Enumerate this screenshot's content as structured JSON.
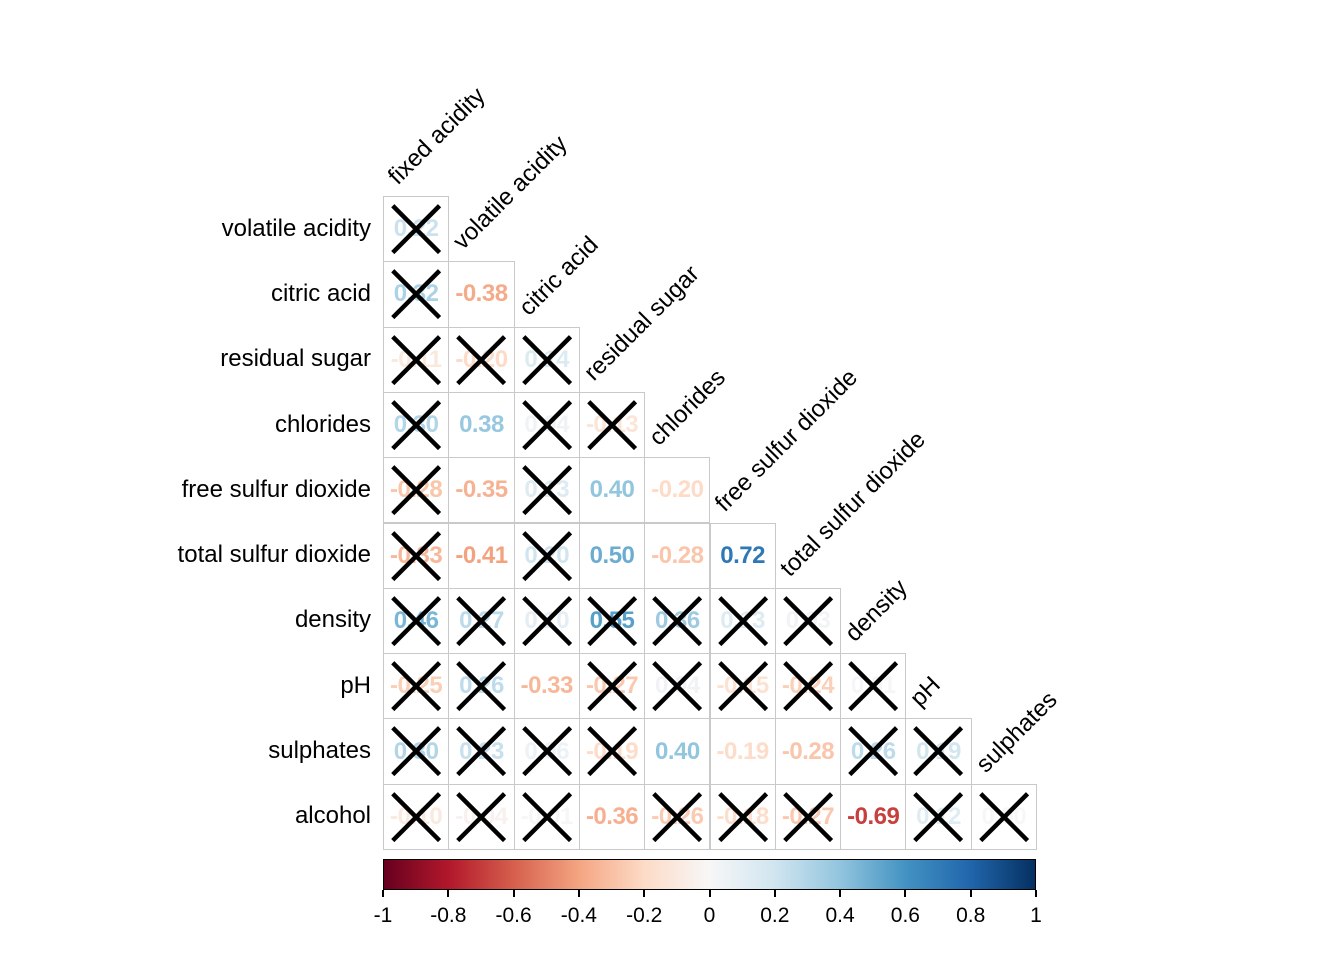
{
  "chart_data": {
    "type": "heatmap",
    "subtype": "lower-triangle correlation matrix with coefficients and non-significance crosses",
    "title": "",
    "row_labels": [
      "volatile acidity",
      "citric acid",
      "residual sugar",
      "chlorides",
      "free sulfur dioxide",
      "total sulfur dioxide",
      "density",
      "pH",
      "sulphates",
      "alcohol"
    ],
    "col_labels": [
      "fixed acidity",
      "volatile acidity",
      "citric acid",
      "residual sugar",
      "chlorides",
      "free sulfur dioxide",
      "total sulfur dioxide",
      "density",
      "pH",
      "sulphates"
    ],
    "rows": [
      {
        "label": "volatile acidity",
        "cells": [
          {
            "value": 0.22,
            "crossed": true
          }
        ]
      },
      {
        "label": "citric acid",
        "cells": [
          {
            "value": 0.32,
            "crossed": true
          },
          {
            "value": -0.38,
            "crossed": false
          }
        ]
      },
      {
        "label": "residual sugar",
        "cells": [
          {
            "value": -0.11,
            "crossed": true
          },
          {
            "value": -0.2,
            "crossed": true
          },
          {
            "value": 0.14,
            "crossed": true
          }
        ]
      },
      {
        "label": "chlorides",
        "cells": [
          {
            "value": 0.3,
            "crossed": true
          },
          {
            "value": 0.38,
            "crossed": false
          },
          {
            "value": 0.04,
            "crossed": true
          },
          {
            "value": -0.13,
            "crossed": true
          }
        ]
      },
      {
        "label": "free sulfur dioxide",
        "cells": [
          {
            "value": -0.28,
            "crossed": true
          },
          {
            "value": -0.35,
            "crossed": false
          },
          {
            "value": 0.13,
            "crossed": true
          },
          {
            "value": 0.4,
            "crossed": false
          },
          {
            "value": -0.2,
            "crossed": false
          }
        ]
      },
      {
        "label": "total sulfur dioxide",
        "cells": [
          {
            "value": -0.33,
            "crossed": true
          },
          {
            "value": -0.41,
            "crossed": false
          },
          {
            "value": 0.2,
            "crossed": true
          },
          {
            "value": 0.5,
            "crossed": false
          },
          {
            "value": -0.28,
            "crossed": false
          },
          {
            "value": 0.72,
            "crossed": false
          }
        ]
      },
      {
        "label": "density",
        "cells": [
          {
            "value": 0.46,
            "crossed": true
          },
          {
            "value": 0.27,
            "crossed": true
          },
          {
            "value": 0.1,
            "crossed": true
          },
          {
            "value": 0.55,
            "crossed": true
          },
          {
            "value": 0.36,
            "crossed": true
          },
          {
            "value": 0.13,
            "crossed": true
          },
          {
            "value": 0.03,
            "crossed": true
          }
        ]
      },
      {
        "label": "pH",
        "cells": [
          {
            "value": -0.25,
            "crossed": true
          },
          {
            "value": 0.26,
            "crossed": true
          },
          {
            "value": -0.33,
            "crossed": false
          },
          {
            "value": -0.27,
            "crossed": true
          },
          {
            "value": 0.04,
            "crossed": true
          },
          {
            "value": -0.15,
            "crossed": true
          },
          {
            "value": -0.24,
            "crossed": true
          },
          {
            "value": 0.01,
            "crossed": true
          }
        ]
      },
      {
        "label": "sulphates",
        "cells": [
          {
            "value": 0.3,
            "crossed": true
          },
          {
            "value": 0.23,
            "crossed": true
          },
          {
            "value": 0.06,
            "crossed": true
          },
          {
            "value": -0.19,
            "crossed": true
          },
          {
            "value": 0.4,
            "crossed": false
          },
          {
            "value": -0.19,
            "crossed": false
          },
          {
            "value": -0.28,
            "crossed": false
          },
          {
            "value": 0.26,
            "crossed": true
          },
          {
            "value": 0.19,
            "crossed": true
          }
        ]
      },
      {
        "label": "alcohol",
        "cells": [
          {
            "value": -0.1,
            "crossed": true
          },
          {
            "value": -0.04,
            "crossed": true
          },
          {
            "value": -0.01,
            "crossed": true
          },
          {
            "value": -0.36,
            "crossed": false
          },
          {
            "value": -0.26,
            "crossed": true
          },
          {
            "value": -0.18,
            "crossed": true
          },
          {
            "value": -0.27,
            "crossed": true
          },
          {
            "value": -0.69,
            "crossed": false
          },
          {
            "value": 0.12,
            "crossed": true
          },
          {
            "value": 0.0,
            "crossed": true
          }
        ]
      }
    ],
    "legend": {
      "position": "bottom",
      "min": -1,
      "max": 1,
      "tick_labels": [
        "-1",
        "-0.8",
        "-0.6",
        "-0.4",
        "-0.2",
        "0",
        "0.2",
        "0.4",
        "0.6",
        "0.8",
        "1"
      ]
    },
    "colormap": {
      "name": "RdBu",
      "anchors": [
        "#67001F",
        "#B2182B",
        "#D6604D",
        "#F4A582",
        "#FDDBC7",
        "#F7F7F7",
        "#D1E5F0",
        "#92C5DE",
        "#4393C3",
        "#2166AC",
        "#053061"
      ]
    },
    "grid_line_color": "#c9c9c9",
    "cross_color": "#000000",
    "label_color": "#000000"
  }
}
